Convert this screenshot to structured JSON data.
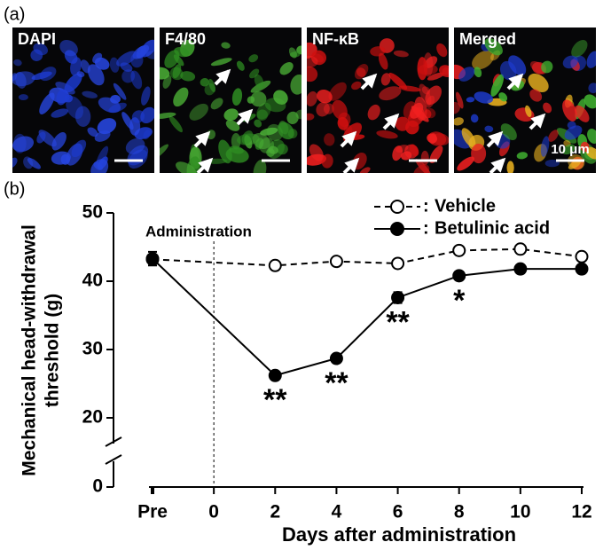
{
  "panel_labels": [
    "(a)",
    "(b)"
  ],
  "images": [
    {
      "label": "DAPI"
    },
    {
      "label": "F4/80"
    },
    {
      "label": "NF-κB"
    },
    {
      "label": "Merged",
      "scale_label": "10 μm"
    }
  ],
  "chart_data": {
    "type": "line",
    "ylabel": [
      "Mechanical head-withdrawal",
      "threshold (g)"
    ],
    "xlabel": "Days after administration",
    "x": [
      -2,
      2,
      4,
      6,
      8,
      10,
      12
    ],
    "xlim": [
      -2,
      12
    ],
    "xticks": [
      {
        "value": -2,
        "label": "Pre"
      },
      0,
      2,
      4,
      6,
      8,
      10,
      12
    ],
    "ylim": [
      0,
      50
    ],
    "yticks": [
      0,
      20,
      30,
      40,
      50
    ],
    "y_break": [
      0,
      20
    ],
    "legend_separator": ":",
    "legend": "upper right",
    "series": [
      {
        "name": "Vehicle",
        "color": "#000000",
        "marker": "open",
        "dash": true,
        "values": [
          43.2,
          42.3,
          42.9,
          42.6,
          44.5,
          44.7,
          43.6
        ],
        "errors": [
          0.6,
          0.3,
          0.5,
          0.4,
          0.4,
          0.4,
          0.3
        ]
      },
      {
        "name": "Betulinic acid",
        "color": "#000000",
        "marker": "filled",
        "dash": false,
        "values": [
          43.3,
          26.2,
          28.7,
          37.6,
          40.8,
          41.8,
          41.8
        ],
        "errors": [
          1.0,
          0.4,
          0.4,
          0.8,
          0.6,
          0.6,
          0.4
        ]
      }
    ],
    "vline": {
      "x": 0,
      "label": "Administration"
    },
    "annotations": [
      {
        "x": 2,
        "text": "**"
      },
      {
        "x": 4,
        "text": "**"
      },
      {
        "x": 6,
        "text": "**"
      },
      {
        "x": 8,
        "text": "*"
      }
    ]
  }
}
